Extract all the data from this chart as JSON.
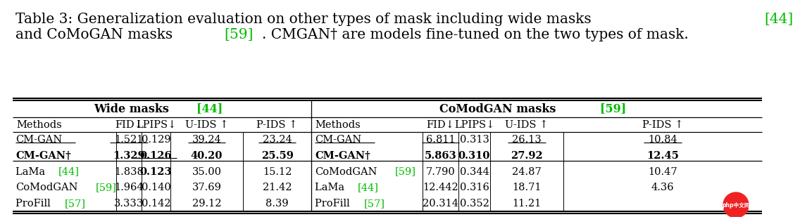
{
  "ref_color": "#00bb00",
  "bg_color": "white",
  "caption_line1": [
    {
      "text": "Table 3: Generalization evaluation on other types of mask including wide masks ",
      "color": "black"
    },
    {
      "text": "[44]",
      "color": "#00bb00"
    }
  ],
  "caption_line2": [
    {
      "text": "and CoMoGAN masks ",
      "color": "black"
    },
    {
      "text": "[59]",
      "color": "#00bb00"
    },
    {
      "text": ". CMGAN† are models fine-tuned on the two types of mask.",
      "color": "black"
    }
  ],
  "wide_header_parts": [
    {
      "text": "Wide masks ",
      "color": "black"
    },
    {
      "text": "[44]",
      "color": "#00bb00"
    }
  ],
  "comod_header_parts": [
    {
      "text": "CoModGAN masks  ",
      "color": "black"
    },
    {
      "text": "[59]",
      "color": "#00bb00"
    }
  ],
  "col_headers": [
    "Methods",
    "FID↓",
    "LPIPS↓",
    "U-IDS ↑",
    "P-IDS ↑"
  ],
  "rows_left": [
    {
      "method_parts": [
        {
          "text": "CM-GAN",
          "color": "black"
        }
      ],
      "method_underline": true,
      "bold": false,
      "values": [
        "1.521",
        "0.129",
        "39.24",
        "23.24"
      ],
      "val_underline": [
        true,
        false,
        true,
        true
      ],
      "val_bold": [
        false,
        false,
        false,
        false
      ]
    },
    {
      "method_parts": [
        {
          "text": "CM-GAN†",
          "color": "black"
        }
      ],
      "method_underline": false,
      "bold": true,
      "values": [
        "1.329",
        "0.126",
        "40.20",
        "25.59"
      ],
      "val_underline": [
        false,
        true,
        false,
        false
      ],
      "val_bold": [
        true,
        true,
        true,
        true
      ]
    },
    {
      "method_parts": [
        {
          "text": "LaMa ",
          "color": "black"
        },
        {
          "text": "[44]",
          "color": "#00bb00"
        }
      ],
      "method_underline": false,
      "bold": false,
      "values": [
        "1.838",
        "0.123",
        "35.00",
        "15.12"
      ],
      "val_underline": [
        false,
        false,
        false,
        false
      ],
      "val_bold": [
        false,
        true,
        false,
        false
      ]
    },
    {
      "method_parts": [
        {
          "text": "CoModGAN",
          "color": "black"
        },
        {
          "text": "[59]",
          "color": "#00bb00"
        }
      ],
      "method_underline": false,
      "bold": false,
      "values": [
        "1.964",
        "0.140",
        "37.69",
        "21.42"
      ],
      "val_underline": [
        false,
        false,
        false,
        false
      ],
      "val_bold": [
        false,
        false,
        false,
        false
      ]
    },
    {
      "method_parts": [
        {
          "text": "ProFill ",
          "color": "black"
        },
        {
          "text": "[57]",
          "color": "#00bb00"
        }
      ],
      "method_underline": false,
      "bold": false,
      "values": [
        "3.333",
        "0.142",
        "29.12",
        "8.39"
      ],
      "val_underline": [
        false,
        false,
        false,
        false
      ],
      "val_bold": [
        false,
        false,
        false,
        false
      ]
    }
  ],
  "rows_right": [
    {
      "method_parts": [
        {
          "text": "CM-GAN",
          "color": "black"
        }
      ],
      "method_underline": true,
      "bold": false,
      "values": [
        "6.811",
        "0.313",
        "26.13",
        "10.84"
      ],
      "val_underline": [
        true,
        false,
        true,
        true
      ],
      "val_bold": [
        false,
        false,
        false,
        false
      ]
    },
    {
      "method_parts": [
        {
          "text": "CM-GAN†",
          "color": "black"
        }
      ],
      "method_underline": false,
      "bold": true,
      "values": [
        "5.863",
        "0.310",
        "27.92",
        "12.45"
      ],
      "val_underline": [
        false,
        false,
        false,
        false
      ],
      "val_bold": [
        true,
        true,
        true,
        true
      ]
    },
    {
      "method_parts": [
        {
          "text": "CoModGAN",
          "color": "black"
        },
        {
          "text": "[59]",
          "color": "#00bb00"
        }
      ],
      "method_underline": false,
      "bold": false,
      "values": [
        "7.790",
        "0.344",
        "24.87",
        "10.47"
      ],
      "val_underline": [
        false,
        false,
        false,
        false
      ],
      "val_bold": [
        false,
        false,
        false,
        false
      ]
    },
    {
      "method_parts": [
        {
          "text": "LaMa ",
          "color": "black"
        },
        {
          "text": "[44]",
          "color": "#00bb00"
        }
      ],
      "method_underline": false,
      "bold": false,
      "values": [
        "12.442",
        "0.316",
        "18.71",
        "4.36"
      ],
      "val_underline": [
        false,
        false,
        false,
        false
      ],
      "val_bold": [
        false,
        false,
        false,
        false
      ]
    },
    {
      "method_parts": [
        {
          "text": "ProFill ",
          "color": "black"
        },
        {
          "text": "[57]",
          "color": "#00bb00"
        }
      ],
      "method_underline": false,
      "bold": false,
      "values": [
        "20.314",
        "0.352",
        "11.21",
        ""
      ],
      "val_underline": [
        false,
        false,
        false,
        false
      ],
      "val_bold": [
        false,
        false,
        false,
        false
      ]
    }
  ]
}
